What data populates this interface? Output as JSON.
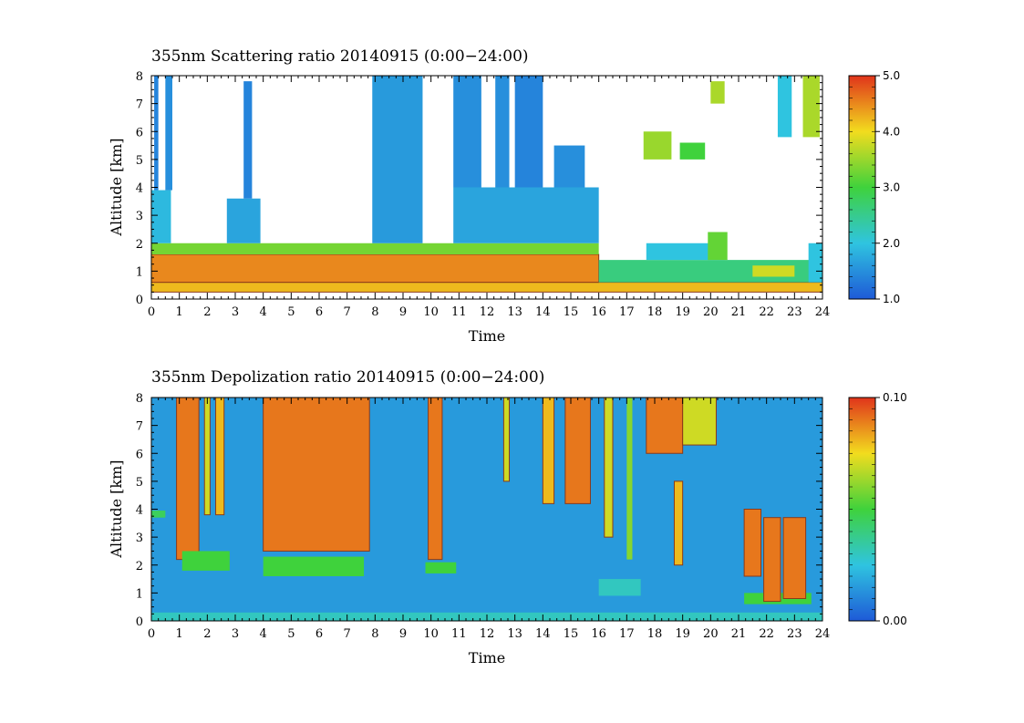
{
  "figure": {
    "colors": {
      "blue": "#1e5ad7",
      "cyan": "#2fc4e0",
      "green": "#3fd23c",
      "yellow": "#f2dc1e",
      "orange": "#f5911e",
      "red": "#e0341b",
      "contour": "#8b3a1a",
      "background": "#ffffff"
    }
  },
  "chart_data": [
    {
      "type": "heatmap",
      "title": "355nm Scattering ratio  20140915 (0:00−24:00)",
      "xlabel": "Time",
      "ylabel": "Altitude [km]",
      "xlim": [
        0,
        24
      ],
      "ylim": [
        0,
        8
      ],
      "x_ticks": [
        "0",
        "1",
        "2",
        "3",
        "4",
        "5",
        "6",
        "7",
        "8",
        "9",
        "10",
        "11",
        "12",
        "13",
        "14",
        "15",
        "16",
        "17",
        "18",
        "19",
        "20",
        "21",
        "22",
        "23",
        "24"
      ],
      "y_ticks": [
        "0",
        "1",
        "2",
        "3",
        "4",
        "5",
        "6",
        "7",
        "8"
      ],
      "colorbar": {
        "min": 1.0,
        "max": 5.0,
        "ticks": [
          "1.0",
          "2.0",
          "3.0",
          "4.0",
          "5.0"
        ]
      },
      "regions": [
        {
          "x0": 0.0,
          "x1": 24.0,
          "y0": 0.25,
          "y1": 0.6,
          "value": 4.2
        },
        {
          "x0": 0.0,
          "x1": 16.0,
          "y0": 0.6,
          "y1": 1.6,
          "value": 4.5
        },
        {
          "x0": 0.0,
          "x1": 16.0,
          "y0": 1.6,
          "y1": 2.0,
          "value": 3.3
        },
        {
          "x0": 0.0,
          "x1": 0.7,
          "y0": 2.0,
          "y1": 3.9,
          "value": 1.9
        },
        {
          "x0": 0.1,
          "x1": 0.25,
          "y0": 3.9,
          "y1": 8.0,
          "value": 1.4
        },
        {
          "x0": 0.5,
          "x1": 0.75,
          "y0": 3.9,
          "y1": 8.0,
          "value": 1.5
        },
        {
          "x0": 2.7,
          "x1": 3.9,
          "y0": 2.0,
          "y1": 3.6,
          "value": 1.7
        },
        {
          "x0": 3.3,
          "x1": 3.6,
          "y0": 3.6,
          "y1": 7.8,
          "value": 1.4
        },
        {
          "x0": 7.9,
          "x1": 9.7,
          "y0": 2.0,
          "y1": 8.0,
          "value": 1.6
        },
        {
          "x0": 10.8,
          "x1": 16.0,
          "y0": 2.0,
          "y1": 4.0,
          "value": 1.7
        },
        {
          "x0": 10.8,
          "x1": 11.8,
          "y0": 4.0,
          "y1": 8.0,
          "value": 1.5
        },
        {
          "x0": 12.3,
          "x1": 12.8,
          "y0": 4.0,
          "y1": 8.0,
          "value": 1.5
        },
        {
          "x0": 13.0,
          "x1": 14.0,
          "y0": 4.0,
          "y1": 8.0,
          "value": 1.4
        },
        {
          "x0": 14.4,
          "x1": 15.5,
          "y0": 4.0,
          "y1": 5.5,
          "value": 1.5
        },
        {
          "x0": 16.0,
          "x1": 24.0,
          "y0": 0.6,
          "y1": 1.4,
          "value": 2.6
        },
        {
          "x0": 17.7,
          "x1": 20.5,
          "y0": 1.4,
          "y1": 2.0,
          "value": 2.0
        },
        {
          "x0": 19.9,
          "x1": 20.6,
          "y0": 1.4,
          "y1": 2.4,
          "value": 3.2
        },
        {
          "x0": 23.5,
          "x1": 24.0,
          "y0": 0.6,
          "y1": 2.0,
          "value": 2.0
        },
        {
          "x0": 21.5,
          "x1": 23.0,
          "y0": 0.8,
          "y1": 1.2,
          "value": 3.8
        },
        {
          "x0": 17.6,
          "x1": 18.6,
          "y0": 5.0,
          "y1": 6.0,
          "value": 3.5
        },
        {
          "x0": 18.9,
          "x1": 19.8,
          "y0": 5.0,
          "y1": 5.6,
          "value": 3.0
        },
        {
          "x0": 20.0,
          "x1": 20.5,
          "y0": 7.0,
          "y1": 7.8,
          "value": 3.6
        },
        {
          "x0": 22.4,
          "x1": 22.9,
          "y0": 5.8,
          "y1": 8.0,
          "value": 2.0
        },
        {
          "x0": 23.3,
          "x1": 23.9,
          "y0": 5.8,
          "y1": 8.0,
          "value": 3.6
        }
      ]
    },
    {
      "type": "heatmap",
      "title": "355nm Depolization ratio  20140915 (0:00−24:00)",
      "xlabel": "Time",
      "ylabel": "Altitude [km]",
      "xlim": [
        0,
        24
      ],
      "ylim": [
        0,
        8
      ],
      "x_ticks": [
        "0",
        "1",
        "2",
        "3",
        "4",
        "5",
        "6",
        "7",
        "8",
        "9",
        "10",
        "11",
        "12",
        "13",
        "14",
        "15",
        "16",
        "17",
        "18",
        "19",
        "20",
        "21",
        "22",
        "23",
        "24"
      ],
      "y_ticks": [
        "0",
        "1",
        "2",
        "3",
        "4",
        "5",
        "6",
        "7",
        "8"
      ],
      "colorbar": {
        "min": 0.0,
        "max": 0.1,
        "ticks": [
          "0.00",
          "0.10"
        ]
      },
      "background_value": 0.015,
      "regions": [
        {
          "x0": 0.0,
          "x1": 24.0,
          "y0": 0.0,
          "y1": 0.3,
          "value": 0.03
        },
        {
          "x0": 0.0,
          "x1": 0.5,
          "y0": 3.7,
          "y1": 3.95,
          "value": 0.045
        },
        {
          "x0": 0.9,
          "x1": 1.7,
          "y0": 2.2,
          "y1": 8.0,
          "value": 0.09
        },
        {
          "x0": 1.9,
          "x1": 2.1,
          "y0": 3.8,
          "y1": 8.0,
          "value": 0.07
        },
        {
          "x0": 2.3,
          "x1": 2.6,
          "y0": 3.8,
          "y1": 8.0,
          "value": 0.08
        },
        {
          "x0": 1.1,
          "x1": 2.8,
          "y0": 1.8,
          "y1": 2.5,
          "value": 0.05
        },
        {
          "x0": 4.0,
          "x1": 7.8,
          "y0": 2.5,
          "y1": 8.0,
          "value": 0.09
        },
        {
          "x0": 4.0,
          "x1": 7.6,
          "y0": 1.6,
          "y1": 2.3,
          "value": 0.05
        },
        {
          "x0": 9.9,
          "x1": 10.4,
          "y0": 2.2,
          "y1": 8.0,
          "value": 0.09
        },
        {
          "x0": 9.8,
          "x1": 10.9,
          "y0": 1.7,
          "y1": 2.1,
          "value": 0.05
        },
        {
          "x0": 12.6,
          "x1": 12.8,
          "y0": 5.0,
          "y1": 8.0,
          "value": 0.07
        },
        {
          "x0": 14.0,
          "x1": 14.4,
          "y0": 4.2,
          "y1": 8.0,
          "value": 0.08
        },
        {
          "x0": 14.8,
          "x1": 15.7,
          "y0": 4.2,
          "y1": 8.0,
          "value": 0.09
        },
        {
          "x0": 16.2,
          "x1": 16.5,
          "y0": 3.0,
          "y1": 8.0,
          "value": 0.07
        },
        {
          "x0": 17.0,
          "x1": 17.2,
          "y0": 2.2,
          "y1": 8.0,
          "value": 0.06
        },
        {
          "x0": 17.7,
          "x1": 19.0,
          "y0": 6.0,
          "y1": 8.0,
          "value": 0.09
        },
        {
          "x0": 19.0,
          "x1": 20.2,
          "y0": 6.3,
          "y1": 8.0,
          "value": 0.07
        },
        {
          "x0": 18.7,
          "x1": 19.0,
          "y0": 2.0,
          "y1": 5.0,
          "value": 0.08
        },
        {
          "x0": 16.0,
          "x1": 17.5,
          "y0": 0.9,
          "y1": 1.5,
          "value": 0.03
        },
        {
          "x0": 21.2,
          "x1": 23.6,
          "y0": 0.6,
          "y1": 1.0,
          "value": 0.05
        },
        {
          "x0": 21.2,
          "x1": 21.8,
          "y0": 1.6,
          "y1": 4.0,
          "value": 0.09
        },
        {
          "x0": 21.9,
          "x1": 22.5,
          "y0": 0.7,
          "y1": 3.7,
          "value": 0.09
        },
        {
          "x0": 22.6,
          "x1": 23.4,
          "y0": 0.8,
          "y1": 3.7,
          "value": 0.09
        }
      ]
    }
  ]
}
